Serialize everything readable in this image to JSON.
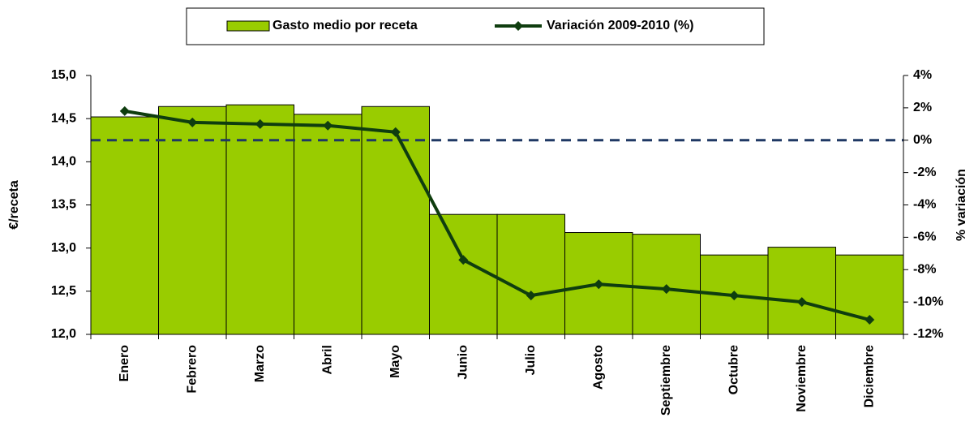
{
  "chart_data": {
    "type": "bar_line",
    "categories": [
      "Enero",
      "Febrero",
      "Marzo",
      "Abril",
      "Mayo",
      "Junio",
      "Julio",
      "Agosto",
      "Septiembre",
      "Octubre",
      "Noviembre",
      "Diciembre"
    ],
    "series": [
      {
        "name": "Gasto medio por receta",
        "type": "bar",
        "color": "#99cc00",
        "values": [
          14.52,
          14.64,
          14.66,
          14.55,
          14.64,
          13.39,
          13.39,
          13.18,
          13.16,
          12.92,
          13.01,
          12.92
        ]
      },
      {
        "name": "Variación 2009-2010 (%)",
        "type": "line",
        "axis": "y2",
        "color": "#0f3d0f",
        "values": [
          1.8,
          1.1,
          1.0,
          0.9,
          0.5,
          -7.4,
          -9.6,
          -8.9,
          -9.2,
          -9.6,
          -10.0,
          -11.1
        ]
      }
    ],
    "y_label": "€/receta",
    "y2_label": "% variación",
    "ylim": [
      12,
      15
    ],
    "yticks": [
      {
        "value": 12,
        "label": "12,0"
      },
      {
        "value": 12.5,
        "label": "12,5"
      },
      {
        "value": 13,
        "label": "13,0"
      },
      {
        "value": 13.5,
        "label": "13,5"
      },
      {
        "value": 14,
        "label": "14,0"
      },
      {
        "value": 14.5,
        "label": "14,5"
      },
      {
        "value": 15,
        "label": "15,0"
      }
    ],
    "y2lim": [
      -12,
      4
    ],
    "y2ticks": [
      {
        "value": -12,
        "label": "-12%"
      },
      {
        "value": -10,
        "label": "-10%"
      },
      {
        "value": -8,
        "label": "-8%"
      },
      {
        "value": -6,
        "label": "-6%"
      },
      {
        "value": -4,
        "label": "-4%"
      },
      {
        "value": -2,
        "label": "-2%"
      },
      {
        "value": 0,
        "label": "0%"
      },
      {
        "value": 2,
        "label": "2%"
      },
      {
        "value": 4,
        "label": "4%"
      }
    ],
    "y2_reference_line": {
      "value": 0,
      "color": "#1f3864"
    },
    "legend": "top"
  }
}
